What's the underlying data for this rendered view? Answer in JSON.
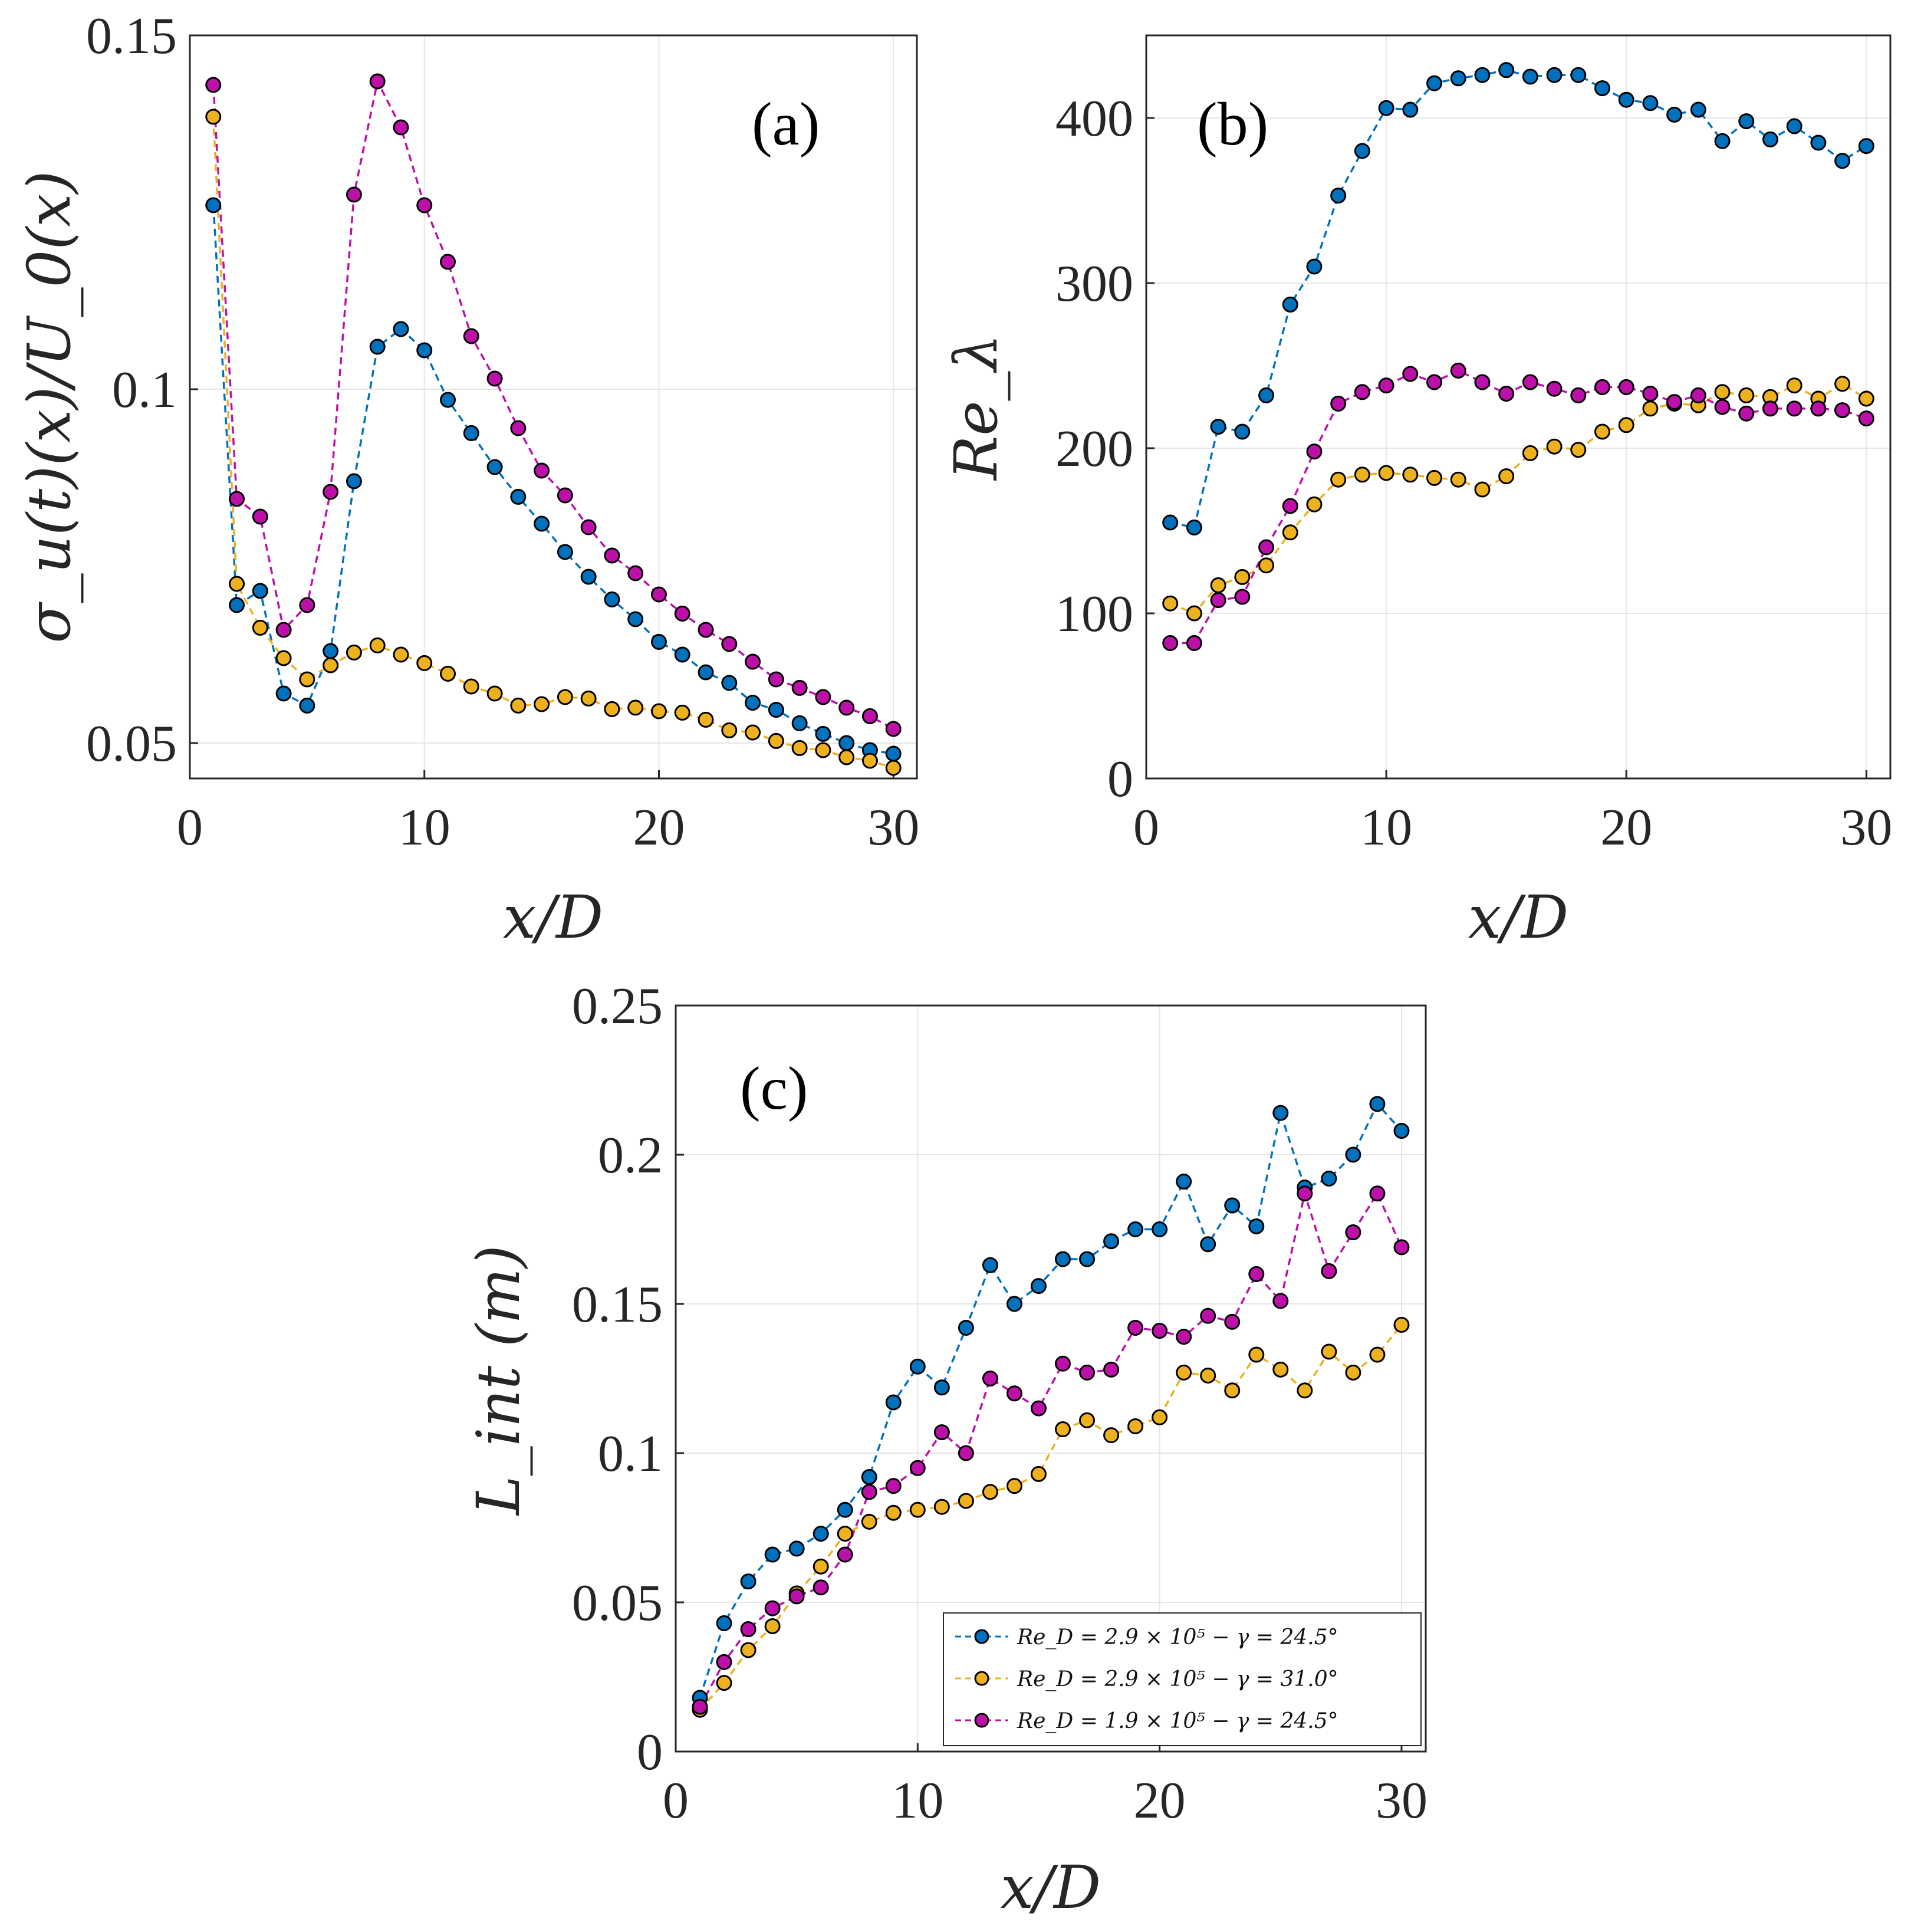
{
  "colors": {
    "series": [
      "#0072BD",
      "#EDB120",
      "#BD10A8"
    ],
    "grid": "#e6e6e6",
    "axis": "#262626",
    "marker_edge": "#000000"
  },
  "legend": {
    "entries": [
      "Re_D = 2.9 × 10⁵ − γ = 24.5°",
      "Re_D = 2.9 × 10⁵ − γ = 31.0°",
      "Re_D = 1.9 × 10⁵ − γ = 24.5°"
    ],
    "placement": "bottom-right of panel (c)"
  },
  "chart_data": [
    {
      "id": "a",
      "panel_label": "(a)",
      "type": "line",
      "xlabel": "x/D",
      "ylabel": "σ_u(t)(x)/U_0(x)",
      "xlim": [
        0,
        31
      ],
      "ylim": [
        0.045,
        0.15
      ],
      "xticks": [
        0,
        10,
        20,
        30
      ],
      "yticks": [
        0.05,
        0.1,
        0.15
      ],
      "xtick_labels": [
        "0",
        "10",
        "20",
        "30"
      ],
      "ytick_labels": [
        "0.05",
        "0.1",
        "0.15"
      ],
      "x": [
        1,
        2,
        3,
        4,
        5,
        6,
        7,
        8,
        9,
        10,
        11,
        12,
        13,
        14,
        15,
        16,
        17,
        18,
        19,
        20,
        21,
        22,
        23,
        24,
        25,
        26,
        27,
        28,
        29,
        30
      ],
      "series": [
        {
          "name": "Re_D = 2.9 × 10⁵ − γ = 24.5°",
          "values": [
            0.126,
            0.0695,
            0.0715,
            0.057,
            0.0553,
            0.063,
            0.087,
            0.106,
            0.1085,
            0.1055,
            0.0985,
            0.0938,
            0.089,
            0.0848,
            0.081,
            0.077,
            0.0735,
            0.0703,
            0.0675,
            0.0643,
            0.0625,
            0.06,
            0.0585,
            0.0557,
            0.0547,
            0.0528,
            0.0513,
            0.05,
            0.049,
            0.0485
          ]
        },
        {
          "name": "Re_D = 2.9 × 10⁵ − γ = 31.0°",
          "values": [
            0.1385,
            0.0725,
            0.0663,
            0.062,
            0.059,
            0.061,
            0.0628,
            0.0638,
            0.0625,
            0.0613,
            0.0598,
            0.058,
            0.057,
            0.0553,
            0.0555,
            0.0565,
            0.0563,
            0.0548,
            0.055,
            0.0545,
            0.0543,
            0.0533,
            0.0518,
            0.0515,
            0.0503,
            0.0493,
            0.049,
            0.048,
            0.0475,
            0.0465
          ]
        },
        {
          "name": "Re_D = 1.9 × 10⁵ − γ = 24.5°",
          "values": [
            0.143,
            0.0845,
            0.082,
            0.066,
            0.0695,
            0.0855,
            0.1275,
            0.1435,
            0.137,
            0.126,
            0.118,
            0.1075,
            0.1015,
            0.0945,
            0.0885,
            0.085,
            0.0805,
            0.0765,
            0.074,
            0.071,
            0.0683,
            0.066,
            0.064,
            0.0615,
            0.059,
            0.0578,
            0.0565,
            0.055,
            0.0538,
            0.052
          ]
        }
      ]
    },
    {
      "id": "b",
      "panel_label": "(b)",
      "type": "line",
      "xlabel": "x/D",
      "ylabel": "Re_λ",
      "xlim": [
        0,
        31
      ],
      "ylim": [
        0,
        450
      ],
      "xticks": [
        0,
        10,
        20,
        30
      ],
      "yticks": [
        0,
        100,
        200,
        300,
        400
      ],
      "xtick_labels": [
        "0",
        "10",
        "20",
        "30"
      ],
      "ytick_labels": [
        "0",
        "100",
        "200",
        "300",
        "400"
      ],
      "x": [
        1,
        2,
        3,
        4,
        5,
        6,
        7,
        8,
        9,
        10,
        11,
        12,
        13,
        14,
        15,
        16,
        17,
        18,
        19,
        20,
        21,
        22,
        23,
        24,
        25,
        26,
        27,
        28,
        29,
        30
      ],
      "series": [
        {
          "name": "Re_D = 2.9 × 10⁵ − γ = 24.5°",
          "values": [
            155,
            152,
            213,
            210,
            232,
            287,
            310,
            353,
            380,
            406,
            405,
            421,
            424,
            426,
            429,
            425,
            426,
            426,
            418,
            411,
            409,
            402,
            405,
            386,
            398,
            387,
            395,
            385,
            374,
            383
          ]
        },
        {
          "name": "Re_D = 2.9 × 10⁵ − γ = 31.0°",
          "values": [
            106,
            100,
            117,
            122,
            129,
            149,
            166,
            181,
            184,
            185,
            184,
            182,
            181,
            175,
            183,
            197,
            201,
            199,
            210,
            214,
            224,
            227,
            226,
            234,
            232,
            231,
            238,
            230,
            239,
            230
          ]
        },
        {
          "name": "Re_D = 1.9 × 10⁵ − γ = 24.5°",
          "values": [
            82,
            82,
            108,
            110,
            140,
            165,
            198,
            227,
            234,
            238,
            245,
            240,
            247,
            240,
            233,
            240,
            236,
            232,
            237,
            237,
            233,
            228,
            232,
            225,
            221,
            224,
            224,
            224,
            223,
            218
          ]
        }
      ]
    },
    {
      "id": "c",
      "panel_label": "(c)",
      "type": "line",
      "xlabel": "x/D",
      "ylabel": "L_int (m)",
      "xlim": [
        0,
        31
      ],
      "ylim": [
        0,
        0.25
      ],
      "xticks": [
        0,
        10,
        20,
        30
      ],
      "yticks": [
        0,
        0.05,
        0.1,
        0.15,
        0.2,
        0.25
      ],
      "xtick_labels": [
        "0",
        "10",
        "20",
        "30"
      ],
      "ytick_labels": [
        "0",
        "0.05",
        "0.1",
        "0.15",
        "0.2",
        "0.25"
      ],
      "x": [
        1,
        2,
        3,
        4,
        5,
        6,
        7,
        8,
        9,
        10,
        11,
        12,
        13,
        14,
        15,
        16,
        17,
        18,
        19,
        20,
        21,
        22,
        23,
        24,
        25,
        26,
        27,
        28,
        29,
        30
      ],
      "series": [
        {
          "name": "Re_D = 2.9 × 10⁵ − γ = 24.5°",
          "values": [
            0.018,
            0.043,
            0.057,
            0.066,
            0.068,
            0.073,
            0.081,
            0.092,
            0.117,
            0.129,
            0.122,
            0.142,
            0.163,
            0.15,
            0.156,
            0.165,
            0.165,
            0.171,
            0.175,
            0.175,
            0.191,
            0.17,
            0.183,
            0.176,
            0.214,
            0.189,
            0.192,
            0.2,
            0.217,
            0.208
          ]
        },
        {
          "name": "Re_D = 2.9 × 10⁵ − γ = 31.0°",
          "values": [
            0.014,
            0.023,
            0.034,
            0.042,
            0.053,
            0.062,
            0.073,
            0.077,
            0.08,
            0.081,
            0.082,
            0.084,
            0.087,
            0.089,
            0.093,
            0.108,
            0.111,
            0.106,
            0.109,
            0.112,
            0.127,
            0.126,
            0.121,
            0.133,
            0.128,
            0.121,
            0.134,
            0.127,
            0.133,
            0.143
          ]
        },
        {
          "name": "Re_D = 1.9 × 10⁵ − γ = 24.5°",
          "values": [
            0.015,
            0.03,
            0.041,
            0.048,
            0.052,
            0.055,
            0.066,
            0.087,
            0.089,
            0.095,
            0.107,
            0.1,
            0.125,
            0.12,
            0.115,
            0.13,
            0.127,
            0.128,
            0.142,
            0.141,
            0.139,
            0.146,
            0.144,
            0.16,
            0.151,
            0.187,
            0.161,
            0.174,
            0.187,
            0.169
          ]
        }
      ]
    }
  ]
}
